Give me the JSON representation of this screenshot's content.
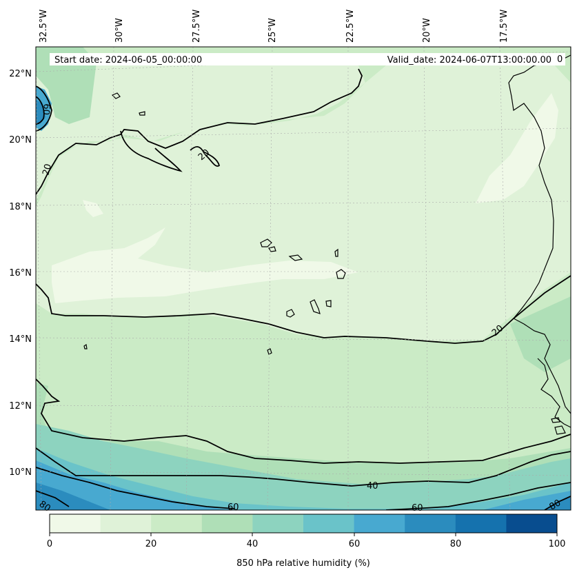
{
  "header": {
    "start_label": "Start date: 2024-06-05_00:00:00",
    "valid_label": "Valid_date: 2024-06-07T13:00:00.00"
  },
  "axes": {
    "top_ticks": [
      "32.5°W",
      "30°W",
      "27.5°W",
      "25°W",
      "22.5°W",
      "20°W",
      "17.5°W"
    ],
    "left_ticks": [
      "22°N",
      "20°N",
      "18°N",
      "16°N",
      "14°N",
      "12°N",
      "10°N"
    ]
  },
  "contour_labels": [
    {
      "text": "20"
    },
    {
      "text": "20"
    },
    {
      "text": "20"
    },
    {
      "text": "0"
    },
    {
      "text": "40"
    },
    {
      "text": "60"
    },
    {
      "text": "60"
    },
    {
      "text": "80"
    },
    {
      "text": "80"
    },
    {
      "text": "60"
    }
  ],
  "colorbar": {
    "ticks": [
      "0",
      "20",
      "40",
      "60",
      "80",
      "100"
    ],
    "label": "850 hPa relative humidity (%)",
    "colors": [
      "#f0f9e8",
      "#dff2d8",
      "#cbebc6",
      "#afdfb7",
      "#8dd3bf",
      "#6ac3c9",
      "#48a9d0",
      "#2b8cbe",
      "#1572ae",
      "#084d8f"
    ]
  },
  "map": {
    "field_variable": "850 hPa relative humidity",
    "units": "%"
  }
}
